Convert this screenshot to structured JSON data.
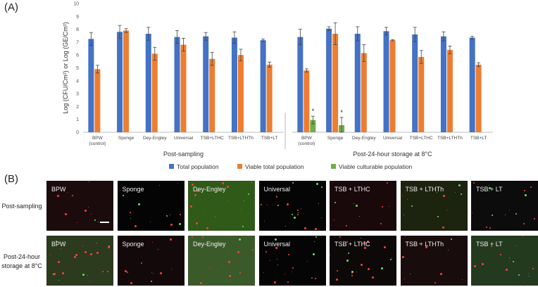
{
  "panel_a_label": "(A)",
  "panel_b_label": "(B)",
  "colors": {
    "total": "#4472c4",
    "viable_total": "#ed7d31",
    "viable_culturable": "#70ad47"
  },
  "chart_data": {
    "type": "bar",
    "ylabel": "Log (CFU/Cm²) or Log (GE/Cm²)",
    "xlabel": "",
    "ylim": [
      0,
      10
    ],
    "yticks": [
      0,
      1,
      2,
      3,
      4,
      5,
      6,
      7,
      8,
      9,
      10
    ],
    "grid": false,
    "legend_position": "bottom",
    "series_names": [
      "Total population",
      "Viable total population",
      "Viable culturable population"
    ],
    "groups": [
      {
        "label": "Post-sampling",
        "categories": [
          "BPW (control)",
          "Sponge",
          "Dey-Engley",
          "Universal",
          "TSB+LTHC",
          "TSB+LTHTh",
          "TSB+LT"
        ],
        "series": [
          {
            "name": "Total population",
            "values": [
              7.25,
              7.8,
              7.65,
              7.4,
              7.45,
              7.35,
              7.15
            ],
            "errors": [
              0.5,
              0.5,
              0.5,
              0.5,
              0.3,
              0.45,
              0.1
            ]
          },
          {
            "name": "Viable total population",
            "values": [
              4.9,
              7.9,
              6.1,
              6.8,
              5.7,
              6.0,
              5.25
            ],
            "errors": [
              0.3,
              0.15,
              0.5,
              0.5,
              0.5,
              0.45,
              0.2
            ]
          },
          {
            "name": "Viable culturable population",
            "values": [
              null,
              null,
              null,
              null,
              null,
              null,
              null
            ],
            "errors": [
              null,
              null,
              null,
              null,
              null,
              null,
              null
            ]
          }
        ]
      },
      {
        "label": "Post-24-hour storage at 8°C",
        "categories": [
          "BPW (control)",
          "Sponge",
          "Dey-Engley",
          "Universal",
          "TSB+LTHC",
          "TSB+LTHTh",
          "TSB+LT"
        ],
        "series": [
          {
            "name": "Total population",
            "values": [
              7.4,
              8.05,
              7.65,
              7.85,
              7.6,
              7.45,
              7.35
            ],
            "errors": [
              0.6,
              0.15,
              0.55,
              0.3,
              0.55,
              0.35,
              0.1
            ]
          },
          {
            "name": "Viable total population",
            "values": [
              4.8,
              7.65,
              6.15,
              7.15,
              5.85,
              6.4,
              5.25
            ],
            "errors": [
              0.12,
              0.85,
              0.65,
              0.05,
              0.5,
              0.3,
              0.15
            ]
          },
          {
            "name": "Viable culturable population",
            "values": [
              0.95,
              0.55,
              null,
              null,
              null,
              null,
              null
            ],
            "errors": [
              0.3,
              0.6,
              null,
              null,
              null,
              null,
              null
            ]
          }
        ]
      }
    ],
    "annotations": [
      {
        "text": "*",
        "group": 1,
        "category": 0,
        "series": 2
      },
      {
        "text": "*",
        "group": 1,
        "category": 1,
        "series": 2
      }
    ]
  },
  "micrographs": {
    "rows": [
      {
        "label": "Post-sampling",
        "tiles": [
          {
            "label": "BPW",
            "bg": "#1c0b0c"
          },
          {
            "label": "Sponge",
            "bg": "#050404"
          },
          {
            "label": "Dey-Engley",
            "bg": "#2f5a18"
          },
          {
            "label": "Universal",
            "bg": "#060505"
          },
          {
            "label": "TSB + LTHC",
            "bg": "#1a090b"
          },
          {
            "label": "TSB + LTHTh",
            "bg": "#1c2410"
          },
          {
            "label": "TSB + LT",
            "bg": "#0c0c0d"
          }
        ]
      },
      {
        "label": "Post-24-hour storage at 8°C",
        "tiles": [
          {
            "label": "BPW",
            "bg": "#2c3a1e"
          },
          {
            "label": "Sponge",
            "bg": "#14090a"
          },
          {
            "label": "Dey-Engley",
            "bg": "#3a5a2a"
          },
          {
            "label": "Universal",
            "bg": "#060506"
          },
          {
            "label": "TSB + LTHC",
            "bg": "#0e0909"
          },
          {
            "label": "TSB + LTHTh",
            "bg": "#190c0d"
          },
          {
            "label": "TSB + LT",
            "bg": "#233a1f"
          }
        ]
      }
    ]
  }
}
